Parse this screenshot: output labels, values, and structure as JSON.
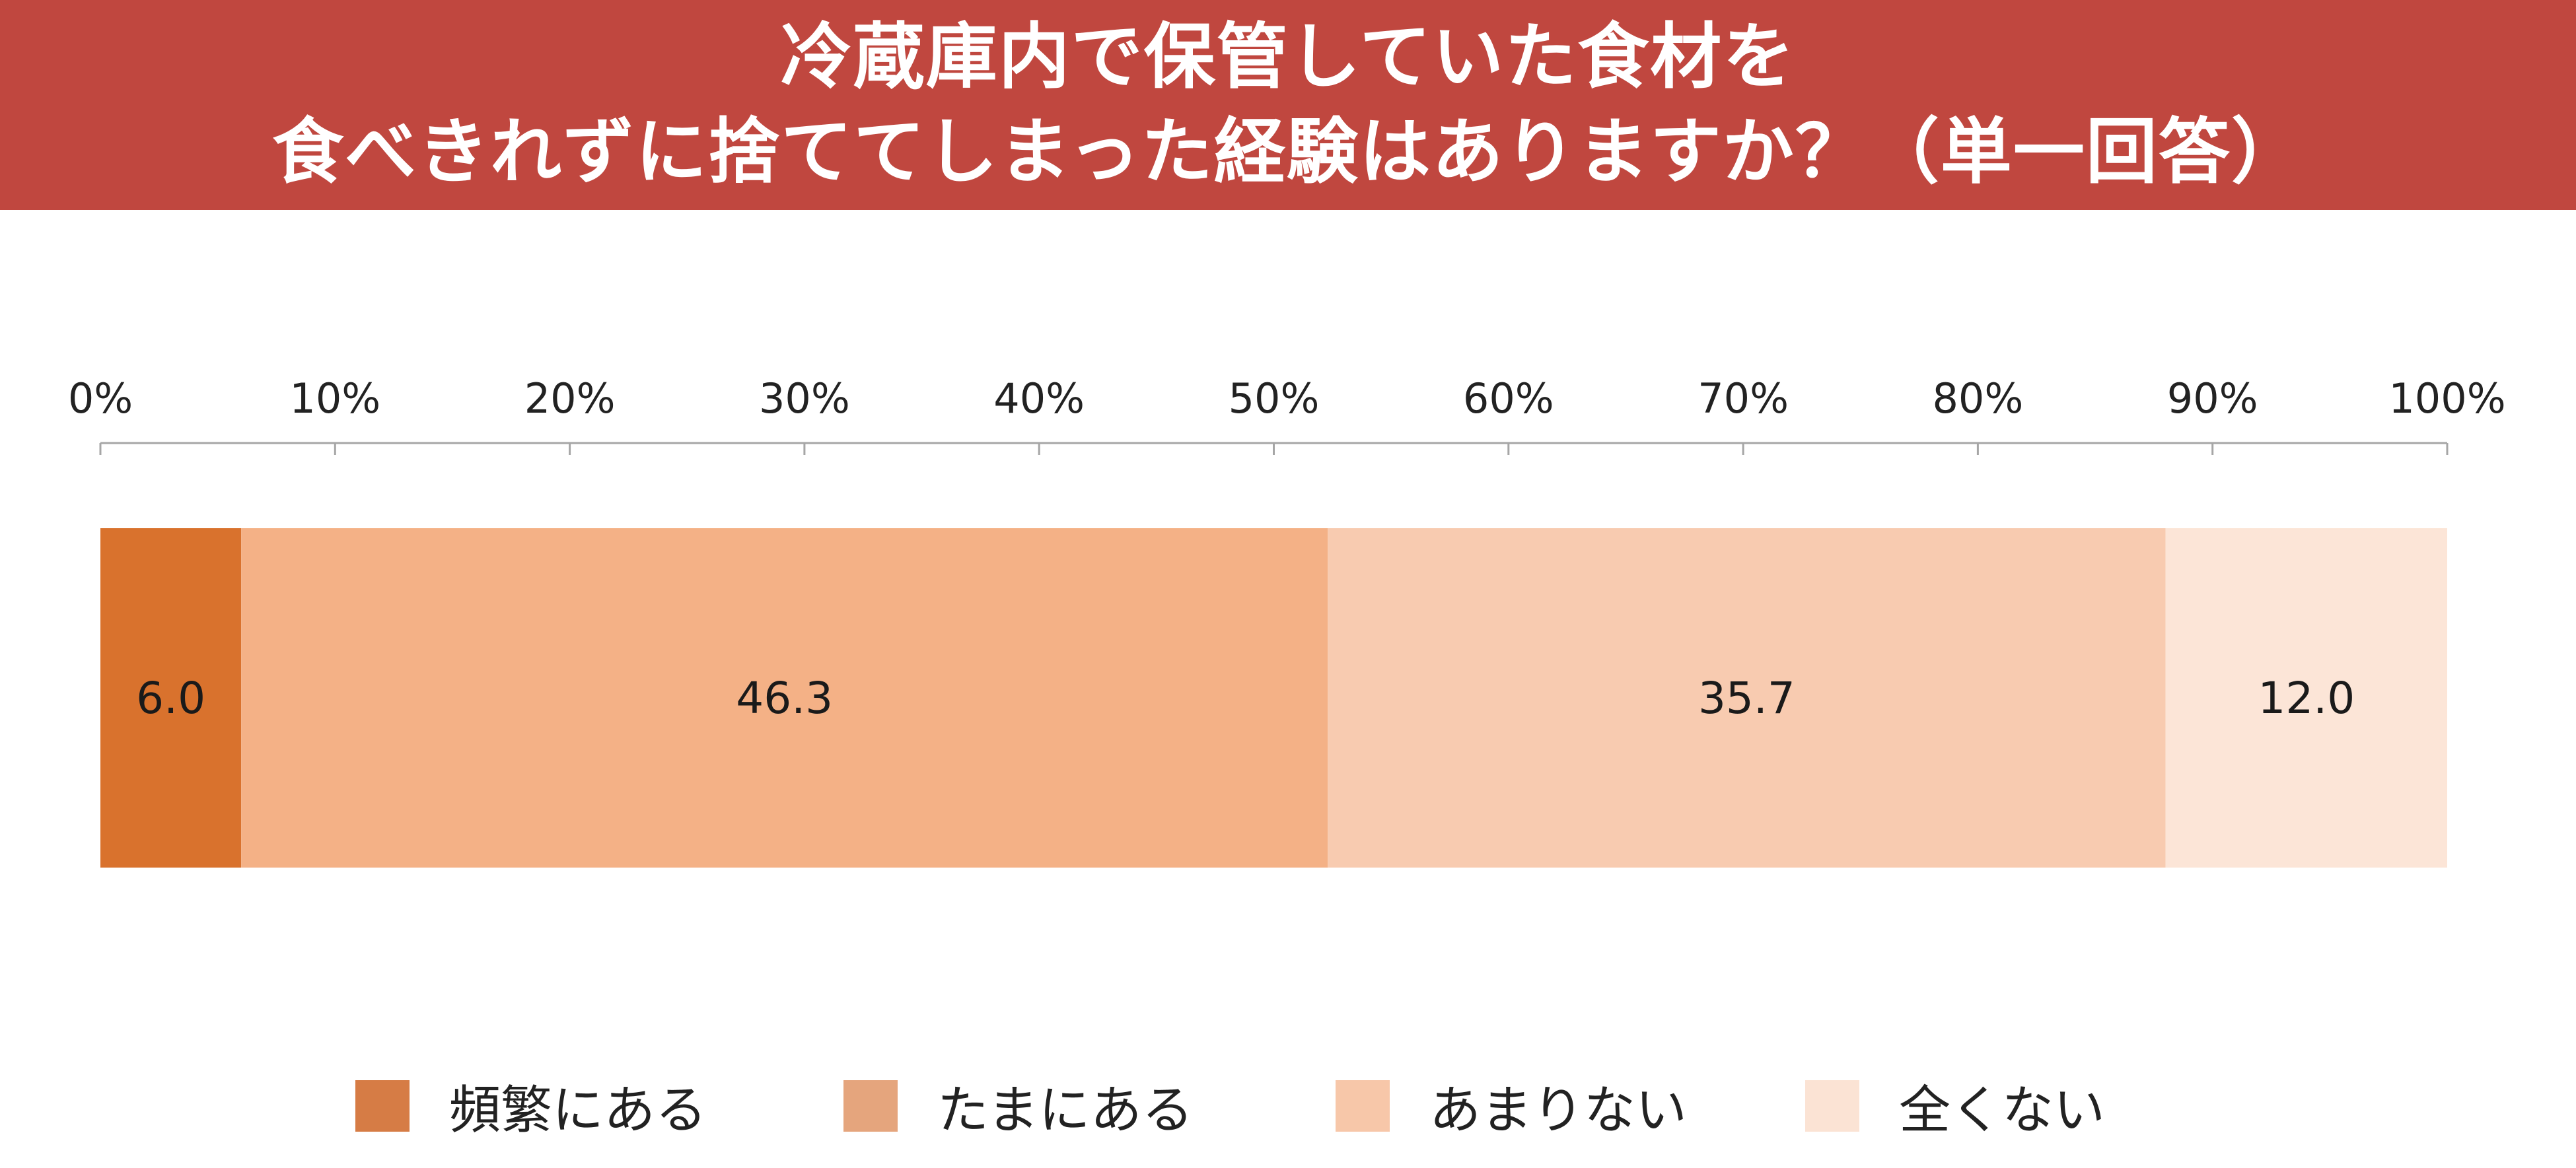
{
  "title": {
    "line1": "冷蔵庫内で保管していた食材を",
    "line2": "食べきれずに捨ててしまった経験はありますか？（単一回答）"
  },
  "colors": {
    "banner": "#c0473f",
    "axis": "#a6a6a6"
  },
  "chart_data": {
    "type": "bar",
    "orientation": "horizontal",
    "stacked": true,
    "title": "冷蔵庫内で保管していた食材を食べきれずに捨ててしまった経験はありますか？（単一回答）",
    "xlim": [
      0,
      100
    ],
    "x_ticks": [
      "0%",
      "10%",
      "20%",
      "30%",
      "40%",
      "50%",
      "60%",
      "70%",
      "80%",
      "90%",
      "100%"
    ],
    "x_tick_values": [
      0,
      10,
      20,
      30,
      40,
      50,
      60,
      70,
      80,
      90,
      100
    ],
    "grid": false,
    "legend": "bottom",
    "series": [
      {
        "name": "頻繁にある",
        "value": 6.0,
        "label": "6.0",
        "color": "#d9722d",
        "legend_color": "#d67c45"
      },
      {
        "name": "たまにある",
        "value": 46.3,
        "label": "46.3",
        "color": "#f4b186",
        "legend_color": "#e5a57d"
      },
      {
        "name": "あまりない",
        "value": 35.7,
        "label": "35.7",
        "color": "#f8cbb0",
        "legend_color": "#f7c7a9"
      },
      {
        "name": "全くない",
        "value": 12.0,
        "label": "12.0",
        "color": "#fce5d7",
        "legend_color": "#fbe3d4"
      }
    ]
  }
}
